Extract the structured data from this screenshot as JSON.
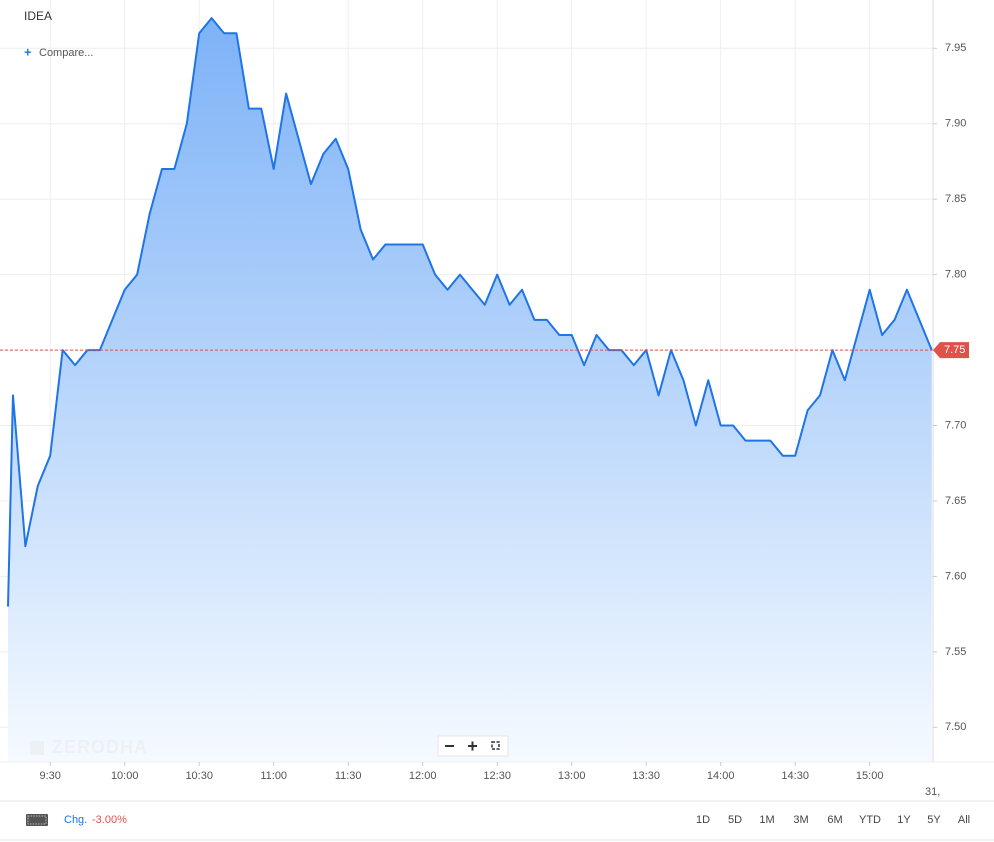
{
  "chart_data": {
    "type": "area",
    "series": [
      {
        "name": "IDEA",
        "color": "#1f74e6",
        "x": [
          553,
          555,
          560,
          565,
          570,
          575,
          580,
          585,
          590,
          595,
          600,
          605,
          610,
          615,
          620,
          625,
          630,
          635,
          640,
          645,
          650,
          655,
          660,
          665,
          670,
          675,
          680,
          685,
          690,
          695,
          700,
          705,
          710,
          715,
          720,
          725,
          730,
          735,
          740,
          745,
          750,
          755,
          760,
          765,
          770,
          775,
          780,
          785,
          790,
          795,
          800,
          805,
          810,
          815,
          820,
          825,
          830,
          835,
          840,
          845,
          850,
          855,
          860,
          865,
          870,
          875,
          880,
          885,
          890,
          895,
          900,
          905,
          910,
          915,
          920,
          925
        ],
        "values": [
          7.58,
          7.72,
          7.62,
          7.66,
          7.68,
          7.75,
          7.74,
          7.75,
          7.75,
          7.77,
          7.79,
          7.8,
          7.84,
          7.87,
          7.87,
          7.9,
          7.96,
          7.97,
          7.96,
          7.96,
          7.91,
          7.91,
          7.87,
          7.92,
          7.89,
          7.86,
          7.88,
          7.89,
          7.87,
          7.83,
          7.81,
          7.82,
          7.82,
          7.82,
          7.82,
          7.8,
          7.79,
          7.8,
          7.79,
          7.78,
          7.8,
          7.78,
          7.79,
          7.77,
          7.77,
          7.76,
          7.76,
          7.74,
          7.76,
          7.75,
          7.75,
          7.74,
          7.75,
          7.72,
          7.75,
          7.73,
          7.7,
          7.73,
          7.7,
          7.7,
          7.69,
          7.69,
          7.69,
          7.68,
          7.68,
          7.71,
          7.72,
          7.75,
          7.73,
          7.76,
          7.79,
          7.76,
          7.77,
          7.79,
          7.77,
          7.75
        ]
      }
    ],
    "xlim": [
      553,
      925.5
    ],
    "xticks": [
      {
        "value": 570,
        "label": "9:30"
      },
      {
        "value": 600,
        "label": "10:00"
      },
      {
        "value": 630,
        "label": "10:30"
      },
      {
        "value": 660,
        "label": "11:00"
      },
      {
        "value": 690,
        "label": "11:30"
      },
      {
        "value": 720,
        "label": "12:00"
      },
      {
        "value": 750,
        "label": "12:30"
      },
      {
        "value": 780,
        "label": "13:00"
      },
      {
        "value": 810,
        "label": "13:30"
      },
      {
        "value": 840,
        "label": "14:00"
      },
      {
        "value": 870,
        "label": "14:30"
      },
      {
        "value": 900,
        "label": "15:00"
      }
    ],
    "x_end_label": "31,",
    "ylim": [
      7.477,
      7.982
    ],
    "yticks": [
      {
        "value": 7.5,
        "label": "7.50"
      },
      {
        "value": 7.55,
        "label": "7.55"
      },
      {
        "value": 7.6,
        "label": "7.60"
      },
      {
        "value": 7.65,
        "label": "7.65"
      },
      {
        "value": 7.7,
        "label": "7.70"
      },
      {
        "value": 7.75,
        "label": "7.75"
      },
      {
        "value": 7.8,
        "label": "7.80"
      },
      {
        "value": 7.85,
        "label": "7.85"
      },
      {
        "value": 7.9,
        "label": "7.90"
      },
      {
        "value": 7.95,
        "label": "7.95"
      }
    ],
    "grid": true,
    "last_price": {
      "value": 7.75,
      "label": "7.75",
      "color": "#e0514b"
    },
    "watermark": "ZERODHA"
  },
  "ui": {
    "compare": "Compare...",
    "change": {
      "label": "Chg.",
      "value": -3.0,
      "value_label": "-3.00%"
    },
    "ranges": [
      "1D",
      "5D",
      "1M",
      "3M",
      "6M",
      "YTD",
      "1Y",
      "5Y",
      "All"
    ]
  }
}
